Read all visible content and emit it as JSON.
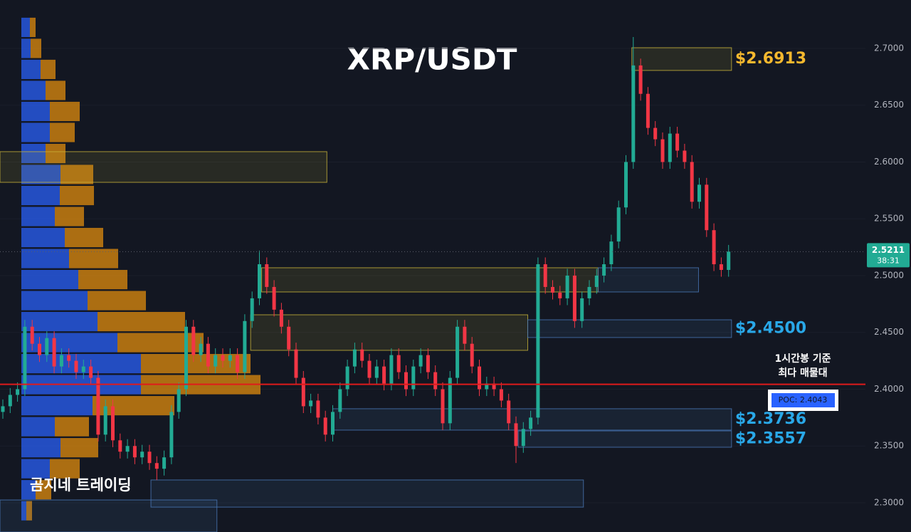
{
  "chart_data": {
    "type": "candlestick",
    "title": "XRP/USDT",
    "watermark": "곰지네 트레이딩",
    "ylim": [
      2.2743,
      2.7426
    ],
    "yticks": [
      {
        "value": 2.3,
        "label": "2.3000"
      },
      {
        "value": 2.35,
        "label": "2.3500"
      },
      {
        "value": 2.4,
        "label": "2.4000"
      },
      {
        "value": 2.45,
        "label": "2.4500"
      },
      {
        "value": 2.5,
        "label": "2.5000"
      },
      {
        "value": 2.55,
        "label": "2.5500"
      },
      {
        "value": 2.6,
        "label": "2.6000"
      },
      {
        "value": 2.65,
        "label": "2.6500"
      },
      {
        "value": 2.7,
        "label": "2.7000"
      }
    ],
    "up_color": "#22ab94",
    "down_color": "#f23645",
    "open": [
      2.38,
      2.385,
      2.395,
      2.4,
      2.455,
      2.44,
      2.43,
      2.445,
      2.42,
      2.43,
      2.425,
      2.415,
      2.42,
      2.41,
      2.36,
      2.385,
      2.355,
      2.345,
      2.35,
      2.34,
      2.345,
      2.335,
      2.33,
      2.34,
      2.38,
      2.4,
      2.455,
      2.43,
      2.44,
      2.42,
      2.43,
      2.425,
      2.43,
      2.415,
      2.46,
      2.48,
      2.51,
      2.49,
      2.47,
      2.455,
      2.435,
      2.41,
      2.385,
      2.39,
      2.375,
      2.36,
      2.38,
      2.4,
      2.42,
      2.435,
      2.425,
      2.41,
      2.42,
      2.405,
      2.43,
      2.415,
      2.4,
      2.42,
      2.43,
      2.415,
      2.4,
      2.37,
      2.41,
      2.455,
      2.44,
      2.42,
      2.4,
      2.405,
      2.4,
      2.39,
      2.37,
      2.35,
      2.365,
      2.375,
      2.51,
      2.49,
      2.485,
      2.48,
      2.5,
      2.46,
      2.48,
      2.49,
      2.5,
      2.51,
      2.53,
      2.56,
      2.6,
      2.685,
      2.66,
      2.63,
      2.62,
      2.6,
      2.625,
      2.61,
      2.6,
      2.565,
      2.58,
      2.54,
      2.51,
      2.505
    ],
    "high": [
      2.391,
      2.401,
      2.406,
      2.461,
      2.461,
      2.446,
      2.451,
      2.451,
      2.436,
      2.436,
      2.431,
      2.426,
      2.426,
      2.416,
      2.391,
      2.391,
      2.361,
      2.356,
      2.356,
      2.351,
      2.351,
      2.341,
      2.346,
      2.386,
      2.406,
      2.461,
      2.461,
      2.446,
      2.446,
      2.436,
      2.436,
      2.436,
      2.436,
      2.466,
      2.486,
      2.522,
      2.516,
      2.496,
      2.476,
      2.461,
      2.441,
      2.416,
      2.396,
      2.396,
      2.381,
      2.386,
      2.406,
      2.426,
      2.441,
      2.441,
      2.431,
      2.426,
      2.426,
      2.436,
      2.436,
      2.421,
      2.426,
      2.436,
      2.436,
      2.421,
      2.406,
      2.416,
      2.461,
      2.461,
      2.446,
      2.426,
      2.411,
      2.411,
      2.406,
      2.396,
      2.376,
      2.371,
      2.381,
      2.516,
      2.516,
      2.496,
      2.491,
      2.506,
      2.506,
      2.486,
      2.496,
      2.506,
      2.516,
      2.536,
      2.566,
      2.606,
      2.71,
      2.691,
      2.666,
      2.636,
      2.626,
      2.631,
      2.631,
      2.616,
      2.606,
      2.586,
      2.586,
      2.546,
      2.516,
      2.527
    ],
    "low": [
      2.374,
      2.379,
      2.389,
      2.394,
      2.434,
      2.424,
      2.424,
      2.414,
      2.414,
      2.419,
      2.409,
      2.409,
      2.404,
      2.354,
      2.354,
      2.349,
      2.339,
      2.339,
      2.334,
      2.334,
      2.329,
      2.32,
      2.324,
      2.334,
      2.374,
      2.394,
      2.424,
      2.424,
      2.414,
      2.414,
      2.419,
      2.419,
      2.409,
      2.409,
      2.454,
      2.474,
      2.484,
      2.464,
      2.449,
      2.429,
      2.404,
      2.379,
      2.379,
      2.369,
      2.354,
      2.354,
      2.374,
      2.394,
      2.414,
      2.419,
      2.404,
      2.404,
      2.399,
      2.399,
      2.409,
      2.394,
      2.394,
      2.414,
      2.409,
      2.394,
      2.364,
      2.364,
      2.404,
      2.434,
      2.414,
      2.394,
      2.394,
      2.394,
      2.384,
      2.364,
      2.335,
      2.344,
      2.359,
      2.369,
      2.484,
      2.479,
      2.474,
      2.474,
      2.454,
      2.454,
      2.474,
      2.484,
      2.494,
      2.504,
      2.524,
      2.554,
      2.594,
      2.654,
      2.624,
      2.614,
      2.594,
      2.594,
      2.604,
      2.594,
      2.559,
      2.559,
      2.534,
      2.504,
      2.499,
      2.499
    ],
    "close": [
      2.385,
      2.395,
      2.4,
      2.455,
      2.44,
      2.43,
      2.445,
      2.42,
      2.43,
      2.425,
      2.415,
      2.42,
      2.41,
      2.36,
      2.385,
      2.355,
      2.345,
      2.35,
      2.34,
      2.345,
      2.335,
      2.33,
      2.34,
      2.38,
      2.4,
      2.455,
      2.43,
      2.44,
      2.42,
      2.43,
      2.425,
      2.43,
      2.415,
      2.46,
      2.48,
      2.51,
      2.49,
      2.47,
      2.455,
      2.435,
      2.41,
      2.385,
      2.39,
      2.375,
      2.36,
      2.38,
      2.4,
      2.42,
      2.435,
      2.425,
      2.41,
      2.42,
      2.405,
      2.43,
      2.415,
      2.4,
      2.42,
      2.43,
      2.415,
      2.4,
      2.37,
      2.41,
      2.455,
      2.44,
      2.42,
      2.4,
      2.405,
      2.4,
      2.39,
      2.37,
      2.35,
      2.365,
      2.375,
      2.51,
      2.49,
      2.485,
      2.48,
      2.5,
      2.46,
      2.48,
      2.49,
      2.5,
      2.51,
      2.53,
      2.56,
      2.6,
      2.685,
      2.66,
      2.63,
      2.62,
      2.6,
      2.625,
      2.61,
      2.6,
      2.565,
      2.58,
      2.54,
      2.51,
      2.505,
      2.5211
    ],
    "countdown": "38:31",
    "volume_profile": {
      "buy_color": "#2962ff",
      "sell_color": "#e8900c",
      "xlim": [
        0,
        400
      ],
      "levels": [
        2.7185,
        2.7,
        2.6815,
        2.663,
        2.6445,
        2.626,
        2.6075,
        2.589,
        2.5705,
        2.552,
        2.5335,
        2.515,
        2.4965,
        2.478,
        2.4595,
        2.441,
        2.4225,
        2.404,
        2.3855,
        2.367,
        2.3485,
        2.33,
        2.3115,
        2.293
      ],
      "buy": [
        12,
        13,
        27,
        34,
        40,
        40,
        34,
        55,
        54,
        47,
        61,
        67,
        80,
        93,
        107,
        135,
        168,
        168,
        100,
        47,
        55,
        40,
        20,
        7
      ],
      "sell": [
        8,
        15,
        21,
        28,
        42,
        35,
        28,
        46,
        48,
        41,
        54,
        69,
        69,
        82,
        123,
        121,
        154,
        168,
        115,
        48,
        53,
        42,
        22,
        8
      ]
    },
    "zones": [
      {
        "from": -0.4,
        "to": 44.2,
        "top": 2.6091,
        "bottom": 2.5821,
        "color": "#c9b43a"
      },
      {
        "from": 85.8,
        "to": 99.4,
        "top": 2.7006,
        "bottom": 2.6806,
        "color": "#c9b43a",
        "label": "$2.6913",
        "label_color": "#f5b82e"
      },
      {
        "from": 35.3,
        "to": 81.2,
        "top": 2.5069,
        "bottom": 2.4856,
        "color": "#c9b43a"
      },
      {
        "from": 81.2,
        "to": 94.9,
        "top": 2.5069,
        "bottom": 2.4856,
        "color": "#4a78b8"
      },
      {
        "from": 33.8,
        "to": 71.6,
        "top": 2.4655,
        "bottom": 2.4342,
        "color": "#c9b43a"
      },
      {
        "from": 71.6,
        "to": 99.4,
        "top": 2.4611,
        "bottom": 2.4455,
        "color": "#4a78b8",
        "label": "$2.4500",
        "label_color": "#29a8e8"
      },
      {
        "from": 45,
        "to": 99.4,
        "top": 2.3828,
        "bottom": 2.364,
        "color": "#4a78b8",
        "label": "$2.3736",
        "label_color": "#29a8e8"
      },
      {
        "from": 70.3,
        "to": 99.4,
        "top": 2.3633,
        "bottom": 2.3489,
        "color": "#4a78b8",
        "label": "$2.3557",
        "label_color": "#29a8e8"
      },
      {
        "from": 20.2,
        "to": 79.2,
        "top": 2.3201,
        "bottom": 2.2962,
        "color": "#4a78b8"
      },
      {
        "from": -0.4,
        "to": 29.2,
        "top": 2.3025,
        "bottom": 2.2743,
        "color": "#4a78b8"
      }
    ],
    "poc": {
      "value": 2.4043,
      "label": "POC: 2.4043",
      "color": "#e01b1b"
    },
    "poc_note": [
      "1시간봉 기준",
      "최다 매물대"
    ]
  }
}
